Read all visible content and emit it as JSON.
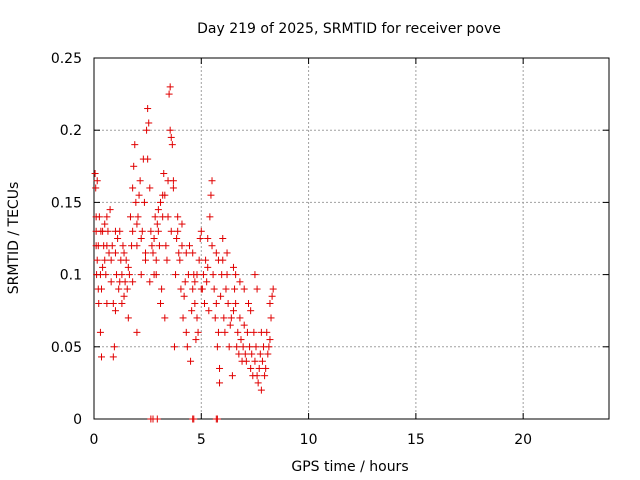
{
  "chart_data": {
    "type": "scatter",
    "title": "Day 219 of 2025, SRMTID for receiver pove",
    "xlabel": "GPS time / hours",
    "ylabel": "SRMTID / TECUs",
    "xlim": [
      0,
      24
    ],
    "ylim": [
      0,
      0.25
    ],
    "x_ticks": [
      0,
      5,
      10,
      15,
      20
    ],
    "x_tick_labels": [
      "0",
      "5",
      "10",
      "15",
      "20"
    ],
    "y_ticks": [
      0,
      0.05,
      0.1,
      0.15,
      0.2,
      0.25
    ],
    "y_tick_labels": [
      "0",
      "0.05",
      "0.1",
      "0.15",
      "0.2",
      "0.25"
    ],
    "grid": true,
    "legend": "none",
    "marker": "+",
    "series": [
      {
        "color": "#e00000",
        "points": [
          [
            0.05,
            0.17
          ],
          [
            0.08,
            0.16
          ],
          [
            0.1,
            0.14
          ],
          [
            0.1,
            0.12
          ],
          [
            0.12,
            0.1
          ],
          [
            0.15,
            0.165
          ],
          [
            0.15,
            0.11
          ],
          [
            0.2,
            0.12
          ],
          [
            0.22,
            0.08
          ],
          [
            0.25,
            0.14
          ],
          [
            0.3,
            0.06
          ],
          [
            0.3,
            0.1
          ],
          [
            0.32,
            0.13
          ],
          [
            0.35,
            0.043
          ],
          [
            0.35,
            0.09
          ],
          [
            0.4,
            0.13
          ],
          [
            0.45,
            0.12
          ],
          [
            0.5,
            0.135
          ],
          [
            0.5,
            0.11
          ],
          [
            0.55,
            0.1
          ],
          [
            0.6,
            0.14
          ],
          [
            0.6,
            0.12
          ],
          [
            0.65,
            0.13
          ],
          [
            0.7,
            0.115
          ],
          [
            0.75,
            0.145
          ],
          [
            0.8,
            0.11
          ],
          [
            0.85,
            0.12
          ],
          [
            0.9,
            0.08
          ],
          [
            0.9,
            0.043
          ],
          [
            0.95,
            0.05
          ],
          [
            1.0,
            0.13
          ],
          [
            1.0,
            0.115
          ],
          [
            1.05,
            0.1
          ],
          [
            1.1,
            0.125
          ],
          [
            1.15,
            0.09
          ],
          [
            1.2,
            0.13
          ],
          [
            1.25,
            0.11
          ],
          [
            1.3,
            0.08
          ],
          [
            1.3,
            0.1
          ],
          [
            1.35,
            0.12
          ],
          [
            1.4,
            0.085
          ],
          [
            1.45,
            0.095
          ],
          [
            1.5,
            0.11
          ],
          [
            1.55,
            0.09
          ],
          [
            1.6,
            0.07
          ],
          [
            1.65,
            0.1
          ],
          [
            1.7,
            0.14
          ],
          [
            1.75,
            0.12
          ],
          [
            1.8,
            0.16
          ],
          [
            1.8,
            0.13
          ],
          [
            1.85,
            0.175
          ],
          [
            1.9,
            0.19
          ],
          [
            1.95,
            0.15
          ],
          [
            2.0,
            0.06
          ],
          [
            2.0,
            0.12
          ],
          [
            2.05,
            0.14
          ],
          [
            2.1,
            0.155
          ],
          [
            2.15,
            0.165
          ],
          [
            2.2,
            0.1
          ],
          [
            2.25,
            0.13
          ],
          [
            2.3,
            0.18
          ],
          [
            2.35,
            0.15
          ],
          [
            2.4,
            0.11
          ],
          [
            2.45,
            0.2
          ],
          [
            2.5,
            0.215
          ],
          [
            2.5,
            0.18
          ],
          [
            2.55,
            0.205
          ],
          [
            2.6,
            0.16
          ],
          [
            2.65,
            0.13
          ],
          [
            2.7,
            0.12
          ],
          [
            2.75,
            0.115
          ],
          [
            2.8,
            0.1
          ],
          [
            2.85,
            0.14
          ],
          [
            2.9,
            0.11
          ],
          [
            2.95,
            0.135
          ],
          [
            3.0,
            0.13
          ],
          [
            3.05,
            0.12
          ],
          [
            3.1,
            0.15
          ],
          [
            3.15,
            0.09
          ],
          [
            3.2,
            0.14
          ],
          [
            3.25,
            0.17
          ],
          [
            3.3,
            0.155
          ],
          [
            3.35,
            0.12
          ],
          [
            3.4,
            0.11
          ],
          [
            3.45,
            0.14
          ],
          [
            3.5,
            0.225
          ],
          [
            3.55,
            0.23
          ],
          [
            3.55,
            0.2
          ],
          [
            3.6,
            0.195
          ],
          [
            3.6,
            0.13
          ],
          [
            3.65,
            0.19
          ],
          [
            3.7,
            0.16
          ],
          [
            3.75,
            0.05
          ],
          [
            3.8,
            0.1
          ],
          [
            3.85,
            0.125
          ],
          [
            3.9,
            0.13
          ],
          [
            3.95,
            0.115
          ],
          [
            4.0,
            0.11
          ],
          [
            4.05,
            0.09
          ],
          [
            4.1,
            0.12
          ],
          [
            4.15,
            0.07
          ],
          [
            4.2,
            0.085
          ],
          [
            4.25,
            0.095
          ],
          [
            4.3,
            0.06
          ],
          [
            4.35,
            0.05
          ],
          [
            4.4,
            0.1
          ],
          [
            4.45,
            0.12
          ],
          [
            4.5,
            0.04
          ],
          [
            4.55,
            0.075
          ],
          [
            4.6,
            0.09
          ],
          [
            4.65,
            0.1
          ],
          [
            4.7,
            0.08
          ],
          [
            4.75,
            0.055
          ],
          [
            4.8,
            0.07
          ],
          [
            4.85,
            0.06
          ],
          [
            4.9,
            0.11
          ],
          [
            4.95,
            0.125
          ],
          [
            5.0,
            0.13
          ],
          [
            5.05,
            0.09
          ],
          [
            5.1,
            0.1
          ],
          [
            5.15,
            0.08
          ],
          [
            5.2,
            0.11
          ],
          [
            5.25,
            0.095
          ],
          [
            5.3,
            0.105
          ],
          [
            5.35,
            0.075
          ],
          [
            5.4,
            0.14
          ],
          [
            5.45,
            0.155
          ],
          [
            5.5,
            0.165
          ],
          [
            5.5,
            0.12
          ],
          [
            5.55,
            0.1
          ],
          [
            5.6,
            0.09
          ],
          [
            5.65,
            0.07
          ],
          [
            5.7,
            0.08
          ],
          [
            5.75,
            0.05
          ],
          [
            5.8,
            0.06
          ],
          [
            5.85,
            0.025
          ],
          [
            5.85,
            0.035
          ],
          [
            5.9,
            0.085
          ],
          [
            5.95,
            0.1
          ],
          [
            6.0,
            0.11
          ],
          [
            6.05,
            0.07
          ],
          [
            6.1,
            0.06
          ],
          [
            6.15,
            0.09
          ],
          [
            6.2,
            0.1
          ],
          [
            6.25,
            0.08
          ],
          [
            6.3,
            0.05
          ],
          [
            6.35,
            0.065
          ],
          [
            6.4,
            0.07
          ],
          [
            6.45,
            0.03
          ],
          [
            6.5,
            0.075
          ],
          [
            6.55,
            0.09
          ],
          [
            6.6,
            0.08
          ],
          [
            6.65,
            0.05
          ],
          [
            6.7,
            0.06
          ],
          [
            6.75,
            0.045
          ],
          [
            6.8,
            0.07
          ],
          [
            6.85,
            0.055
          ],
          [
            6.9,
            0.04
          ],
          [
            6.95,
            0.05
          ],
          [
            7.0,
            0.065
          ],
          [
            7.05,
            0.045
          ],
          [
            7.1,
            0.04
          ],
          [
            7.15,
            0.06
          ],
          [
            7.2,
            0.08
          ],
          [
            7.25,
            0.05
          ],
          [
            7.3,
            0.035
          ],
          [
            7.35,
            0.045
          ],
          [
            7.4,
            0.03
          ],
          [
            7.45,
            0.06
          ],
          [
            7.5,
            0.04
          ],
          [
            7.55,
            0.05
          ],
          [
            7.6,
            0.03
          ],
          [
            7.65,
            0.025
          ],
          [
            7.7,
            0.035
          ],
          [
            7.75,
            0.045
          ],
          [
            7.8,
            0.02
          ],
          [
            7.85,
            0.04
          ],
          [
            7.9,
            0.05
          ],
          [
            7.95,
            0.03
          ],
          [
            8.0,
            0.035
          ],
          [
            8.05,
            0.06
          ],
          [
            8.1,
            0.045
          ],
          [
            8.15,
            0.05
          ],
          [
            8.2,
            0.08
          ],
          [
            8.25,
            0.07
          ],
          [
            8.3,
            0.085
          ],
          [
            8.35,
            0.09
          ],
          [
            7.5,
            0.1
          ],
          [
            7.6,
            0.09
          ],
          [
            7.3,
            0.075
          ],
          [
            7.0,
            0.09
          ],
          [
            6.8,
            0.095
          ],
          [
            6.5,
            0.105
          ],
          [
            6.2,
            0.115
          ],
          [
            6.0,
            0.125
          ],
          [
            5.7,
            0.115
          ],
          [
            5.3,
            0.125
          ],
          [
            5.0,
            0.09
          ],
          [
            4.8,
            0.1
          ],
          [
            4.6,
            0.115
          ],
          [
            4.3,
            0.115
          ],
          [
            4.1,
            0.135
          ],
          [
            3.9,
            0.14
          ],
          [
            3.7,
            0.165
          ],
          [
            3.45,
            0.165
          ],
          [
            3.2,
            0.155
          ],
          [
            3.0,
            0.145
          ],
          [
            2.8,
            0.125
          ],
          [
            2.6,
            0.095
          ],
          [
            2.4,
            0.115
          ],
          [
            2.2,
            0.125
          ],
          [
            2.0,
            0.135
          ],
          [
            1.8,
            0.095
          ],
          [
            1.6,
            0.105
          ],
          [
            1.4,
            0.115
          ],
          [
            1.2,
            0.095
          ],
          [
            1.0,
            0.075
          ],
          [
            0.8,
            0.095
          ],
          [
            0.6,
            0.08
          ],
          [
            0.4,
            0.105
          ],
          [
            0.2,
            0.09
          ],
          [
            0.1,
            0.13
          ],
          [
            3.3,
            0.07
          ],
          [
            3.1,
            0.08
          ],
          [
            2.9,
            0.1
          ],
          [
            4.7,
            0.095
          ],
          [
            5.8,
            0.11
          ],
          [
            6.6,
            0.1
          ],
          [
            7.8,
            0.06
          ],
          [
            8.2,
            0.055
          ],
          [
            2.65,
            0
          ],
          [
            2.75,
            0
          ],
          [
            2.95,
            0
          ],
          [
            4.6,
            0
          ],
          [
            4.65,
            0
          ],
          [
            5.7,
            0
          ],
          [
            5.75,
            0
          ]
        ]
      }
    ]
  }
}
